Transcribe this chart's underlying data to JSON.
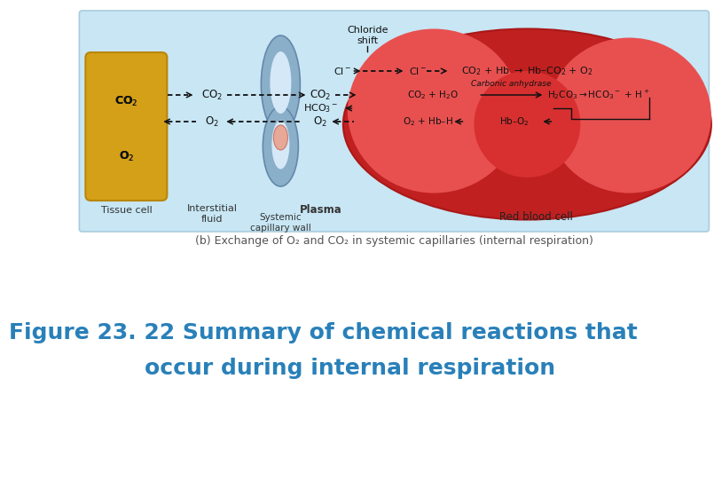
{
  "background_color": "#ffffff",
  "diagram_bg": "#c8e6f4",
  "title_line1": "Figure 23. 22 Summary of chemical reactions that",
  "title_line2": "occur during internal respiration",
  "title_color": "#2980b9",
  "title_fontsize": 18,
  "subtitle": "(b) Exchange of O₂ and CO₂ in systemic capillaries (internal respiration)",
  "subtitle_fontsize": 9,
  "subtitle_color": "#555555",
  "tissue_color": "#d4a017",
  "tissue_edge": "#b8860b",
  "cap_color": "#8aafc8",
  "cap_edge": "#6688aa",
  "rbc_dark": "#c02020",
  "rbc_mid": "#d83030",
  "rbc_light": "#e85050",
  "arrow_color": "#111111"
}
